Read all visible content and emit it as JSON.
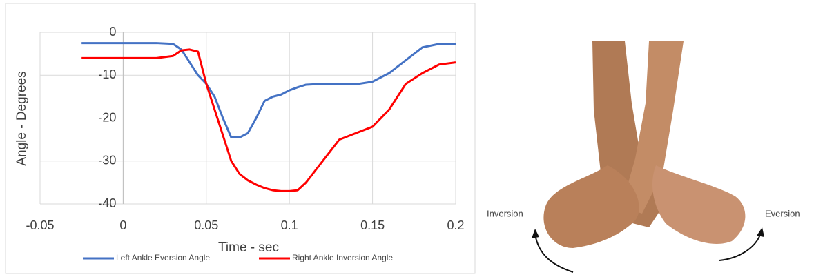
{
  "chart_data": {
    "type": "line",
    "x_label": "Time - sec",
    "y_label": "Angle - Degrees",
    "x": [
      -0.025,
      0,
      0.02,
      0.03,
      0.035,
      0.04,
      0.045,
      0.05,
      0.055,
      0.06,
      0.065,
      0.07,
      0.075,
      0.08,
      0.085,
      0.09,
      0.095,
      0.1,
      0.105,
      0.11,
      0.12,
      0.13,
      0.14,
      0.15,
      0.16,
      0.17,
      0.18,
      0.19,
      0.2
    ],
    "series": [
      {
        "name": "Left Ankle Eversion Angle",
        "color": "#4472c4",
        "values": [
          -2.5,
          -2.5,
          -2.5,
          -2.7,
          -4,
          -7,
          -10,
          -12,
          -15,
          -20,
          -24.5,
          -24.5,
          -23.5,
          -20,
          -16,
          -15,
          -14.5,
          -13.5,
          -12.8,
          -12.2,
          -12,
          -12,
          -12.1,
          -11.5,
          -9.5,
          -6.5,
          -3.5,
          -2.7,
          -2.8
        ]
      },
      {
        "name": "Right Ankle Inversion  Angle",
        "color": "#ff0000",
        "values": [
          -6,
          -6,
          -6,
          -5.5,
          -4.2,
          -4,
          -4.5,
          -12,
          -18,
          -24,
          -30,
          -33,
          -34.5,
          -35.5,
          -36.3,
          -36.8,
          -37,
          -37,
          -36.8,
          -35,
          -30,
          -25,
          -23.5,
          -22,
          -18,
          -12,
          -9.5,
          -7.5,
          -7
        ]
      }
    ],
    "xlim": [
      -0.05,
      0.2
    ],
    "xticks": [
      -0.05,
      0,
      0.05,
      0.1,
      0.15,
      0.2
    ],
    "ylim": [
      -40,
      0
    ],
    "yticks": [
      0,
      -10,
      -20,
      -30,
      -40
    ],
    "grid": true,
    "legend": "bottom"
  },
  "illustration": {
    "left_label": "Inversion",
    "right_label": "Eversion"
  }
}
